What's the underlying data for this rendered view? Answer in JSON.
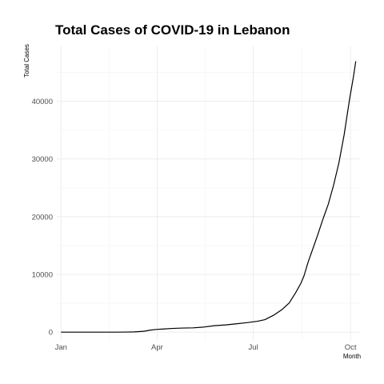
{
  "chart_data": {
    "type": "line",
    "title": "Total Cases of COVID-19 in Lebanon",
    "xlabel": "Month",
    "ylabel": "Total Cases",
    "x_ticks": [
      {
        "label": "Jan",
        "date": "2020-01-01"
      },
      {
        "label": "Apr",
        "date": "2020-04-01"
      },
      {
        "label": "Jul",
        "date": "2020-07-01"
      },
      {
        "label": "Oct",
        "date": "2020-10-01"
      }
    ],
    "y_ticks": [
      0,
      10000,
      20000,
      30000,
      40000
    ],
    "xlim": [
      "2019-12-28",
      "2020-10-10"
    ],
    "ylim": [
      -1500,
      49500
    ],
    "grid": true,
    "series": [
      {
        "color": "#000000",
        "points": [
          {
            "date": "2020-01-01",
            "value": 0
          },
          {
            "date": "2020-01-22",
            "value": 0
          },
          {
            "date": "2020-02-21",
            "value": 1
          },
          {
            "date": "2020-03-03",
            "value": 13
          },
          {
            "date": "2020-03-10",
            "value": 41
          },
          {
            "date": "2020-03-15",
            "value": 93
          },
          {
            "date": "2020-03-20",
            "value": 163
          },
          {
            "date": "2020-03-25",
            "value": 333
          },
          {
            "date": "2020-03-31",
            "value": 470
          },
          {
            "date": "2020-04-07",
            "value": 541
          },
          {
            "date": "2020-04-15",
            "value": 641
          },
          {
            "date": "2020-04-25",
            "value": 710
          },
          {
            "date": "2020-05-05",
            "value": 741
          },
          {
            "date": "2020-05-15",
            "value": 878
          },
          {
            "date": "2020-05-25",
            "value": 1119
          },
          {
            "date": "2020-06-05",
            "value": 1256
          },
          {
            "date": "2020-06-15",
            "value": 1446
          },
          {
            "date": "2020-06-25",
            "value": 1644
          },
          {
            "date": "2020-07-05",
            "value": 1885
          },
          {
            "date": "2020-07-12",
            "value": 2168
          },
          {
            "date": "2020-07-20",
            "value": 2905
          },
          {
            "date": "2020-07-28",
            "value": 3882
          },
          {
            "date": "2020-08-04",
            "value": 5062
          },
          {
            "date": "2020-08-10",
            "value": 6812
          },
          {
            "date": "2020-08-15",
            "value": 8442
          },
          {
            "date": "2020-08-18",
            "value": 9758
          },
          {
            "date": "2020-08-22",
            "value": 12191
          },
          {
            "date": "2020-08-26",
            "value": 14248
          },
          {
            "date": "2020-08-31",
            "value": 16870
          },
          {
            "date": "2020-09-05",
            "value": 19618
          },
          {
            "date": "2020-09-10",
            "value": 22174
          },
          {
            "date": "2020-09-15",
            "value": 25474
          },
          {
            "date": "2020-09-20",
            "value": 29303
          },
          {
            "date": "2020-09-25",
            "value": 34205
          },
          {
            "date": "2020-09-30",
            "value": 40197
          },
          {
            "date": "2020-10-04",
            "value": 44482
          },
          {
            "date": "2020-10-06",
            "value": 46927
          }
        ]
      }
    ]
  }
}
